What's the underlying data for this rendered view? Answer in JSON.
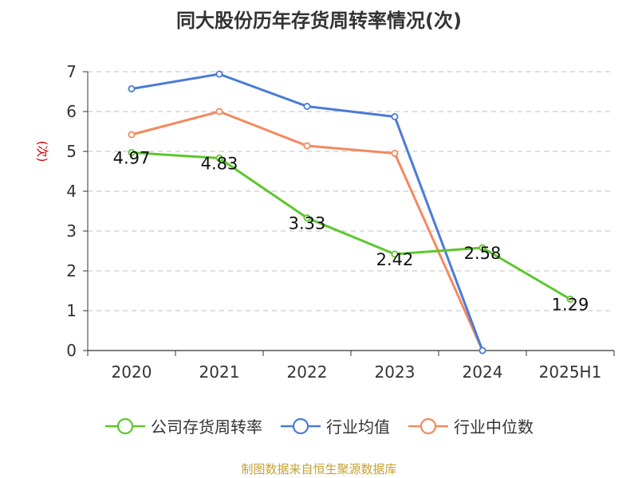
{
  "title": "同大股份历年存货周转率情况(次)",
  "source": "制图数据来自恒生聚源数据库",
  "colors": {
    "source": "#c8a032",
    "axis": "#333333",
    "grid": "#cccccc",
    "ylabel": "#cc0000"
  },
  "chart_data": {
    "type": "line",
    "title": "同大股份历年存货周转率情况(次)",
    "xlabel": "",
    "ylabel": "(次)",
    "categories": [
      "2020",
      "2021",
      "2022",
      "2023",
      "2024",
      "2025H1"
    ],
    "ylim": [
      0,
      7
    ],
    "yticks": [
      0,
      1,
      2,
      3,
      4,
      5,
      6,
      7
    ],
    "grid": true,
    "legend_position": "bottom",
    "series": [
      {
        "name": "公司存货周转率",
        "color": "#5cc72d",
        "values": [
          4.97,
          4.83,
          3.33,
          2.42,
          2.58,
          1.29
        ],
        "labels": [
          "4.97",
          "4.83",
          "3.33",
          "2.42",
          "2.58",
          "1.29"
        ]
      },
      {
        "name": "行业均值",
        "color": "#4a7bd6",
        "values": [
          6.57,
          6.94,
          6.13,
          5.87,
          0,
          null
        ],
        "labels": null
      },
      {
        "name": "行业中位数",
        "color": "#f4895f",
        "values": [
          5.42,
          6.0,
          5.14,
          4.95,
          0,
          null
        ],
        "labels": null
      }
    ]
  }
}
